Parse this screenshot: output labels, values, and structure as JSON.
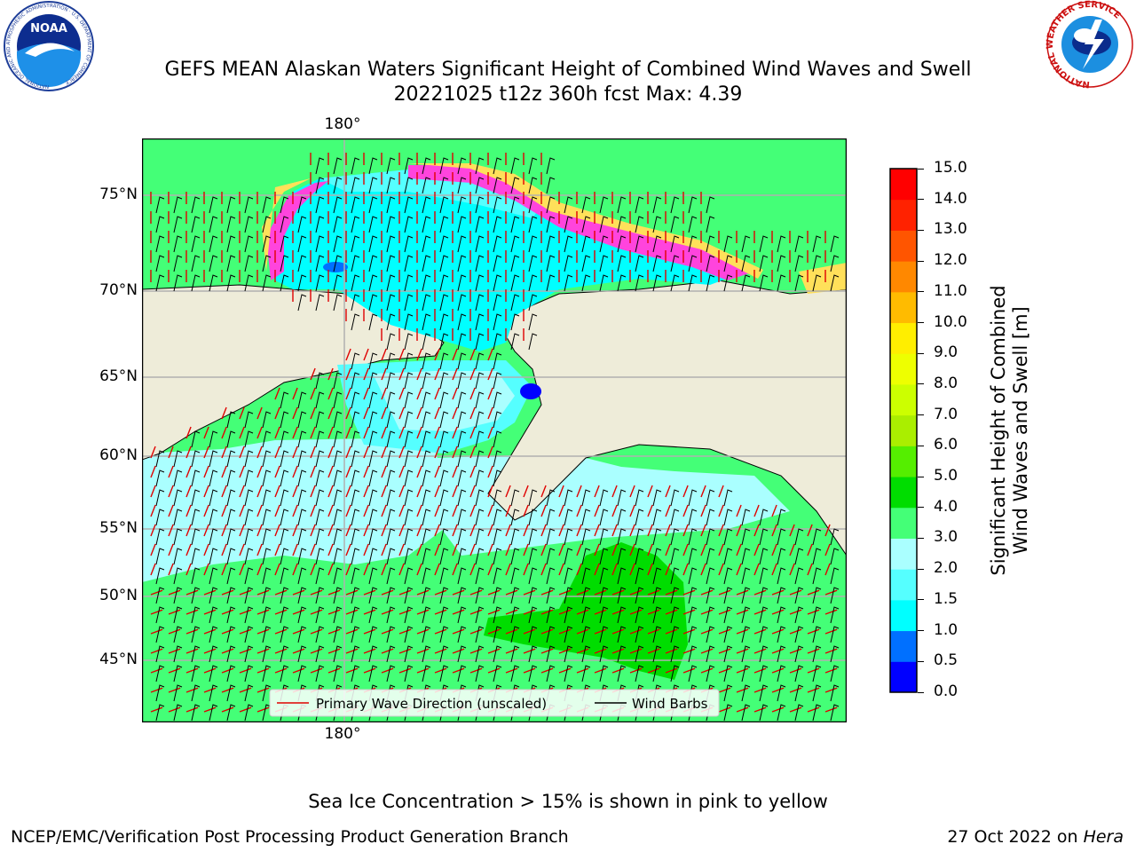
{
  "header": {
    "title_line1": "GEFS MEAN Alaskan Waters Significant Height of Combined Wind Waves and Swell",
    "title_line2": "20221025 t12z 360h fcst   Max: 4.39",
    "noaa_logo_text": "NOAA",
    "noaa_ring_text": "NATIONAL OCEANIC AND ATMOSPHERIC ADMINISTRATION · U.S. DEPARTMENT OF COMMERCE",
    "nws_ring_text": "NATIONAL WEATHER SERVICE"
  },
  "map": {
    "lon_label_top": "180°",
    "lon_label_bottom": "180°",
    "lat_labels": [
      {
        "label": "75°N",
        "lat": 75
      },
      {
        "label": "70°N",
        "lat": 70
      },
      {
        "label": "65°N",
        "lat": 65
      },
      {
        "label": "60°N",
        "lat": 60
      },
      {
        "label": "55°N",
        "lat": 55
      },
      {
        "label": "50°N",
        "lat": 50
      },
      {
        "label": "45°N",
        "lat": 45
      }
    ],
    "legend": {
      "primary_wave": "Primary Wave Direction (unscaled)",
      "wind_barbs": "Wind Barbs"
    },
    "colors": {
      "land": "#eeecd9",
      "coast": "#000000",
      "grid": "#b0b0b0",
      "arrow": "#e00000",
      "barb": "#000000",
      "ice_pink": "#ff44dd",
      "ice_yellow": "#ffe05a"
    }
  },
  "colorbar": {
    "label_line1": "Significant Height of Combined",
    "label_line2": "Wind Waves and Swell [m]",
    "min": 0,
    "max": 15,
    "ticks": [
      "0.0",
      "0.5",
      "1.0",
      "1.5",
      "2.0",
      "3.0",
      "4.0",
      "5.0",
      "6.0",
      "7.0",
      "8.0",
      "9.0",
      "10.0",
      "11.0",
      "12.0",
      "13.0",
      "14.0",
      "15.0"
    ],
    "colors": [
      "#0000ff",
      "#0070ff",
      "#00ffff",
      "#55ffff",
      "#aaffff",
      "#44ff77",
      "#00dd00",
      "#55ee00",
      "#aaee00",
      "#ccff00",
      "#eeff00",
      "#ffee00",
      "#ffbb00",
      "#ff8800",
      "#ff5500",
      "#ff2200",
      "#ff0000"
    ]
  },
  "footer": {
    "note": "Sea Ice Concentration > 15% is shown in pink to yellow",
    "left": "NCEP/EMC/Verification Post Processing Product Generation Branch",
    "right_date": "27 Oct 2022 on ",
    "right_host": "Hera"
  }
}
